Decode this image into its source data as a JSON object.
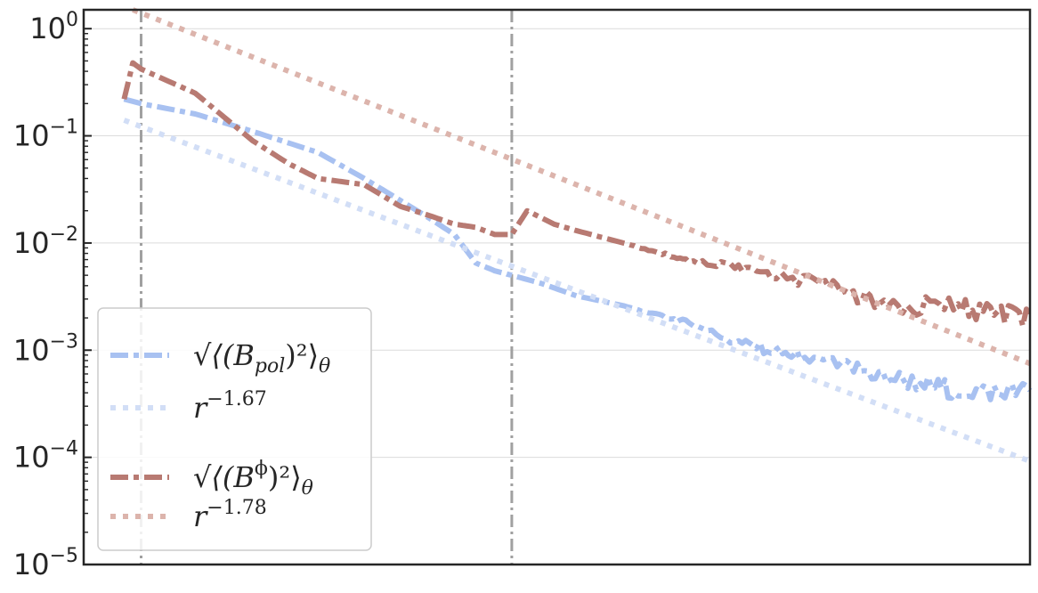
{
  "chart_data": {
    "type": "line",
    "title": "",
    "xlabel": "",
    "ylabel": "",
    "xscale": "log",
    "yscale": "log",
    "x_ticks_labeled": false,
    "xlim": [
      0.007,
      2.5
    ],
    "ylim": [
      1e-05,
      1.5
    ],
    "y_ticks": [
      {
        "value": 1,
        "base": "10",
        "exp": "0"
      },
      {
        "value": 0.1,
        "base": "10",
        "exp": "−1"
      },
      {
        "value": 0.01,
        "base": "10",
        "exp": "−2"
      },
      {
        "value": 0.001,
        "base": "10",
        "exp": "−3"
      },
      {
        "value": 0.0001,
        "base": "10",
        "exp": "−4"
      },
      {
        "value": 1e-05,
        "base": "10",
        "exp": "−5"
      }
    ],
    "vertical_lines": [
      {
        "x": 0.01,
        "style": "dashdot",
        "color": "#a0a0a0"
      },
      {
        "x": 0.1,
        "style": "dashdot",
        "color": "#a0a0a0"
      }
    ],
    "grid": {
      "horizontal": true,
      "vertical": false
    },
    "legend_position": "lower-left",
    "series": [
      {
        "name": "B_pol",
        "legend": {
          "prefix": "√⟨(B",
          "sub": "pol",
          "sup": "",
          "suffix": ")²⟩",
          "tail": "θ"
        },
        "color": "#a8c1f1",
        "style": "dashdot",
        "x": [
          0.009,
          0.01,
          0.014,
          0.02,
          0.03,
          0.04,
          0.05,
          0.06,
          0.07,
          0.08,
          0.09,
          0.1,
          0.12,
          0.15,
          0.2,
          0.25,
          0.3,
          0.4,
          0.5,
          0.6,
          0.8,
          1.0,
          1.3,
          1.6,
          2.0,
          2.5
        ],
        "values": [
          0.22,
          0.2,
          0.16,
          0.11,
          0.07,
          0.04,
          0.025,
          0.017,
          0.012,
          0.0065,
          0.0055,
          0.005,
          0.0042,
          0.0032,
          0.0026,
          0.0021,
          0.0018,
          0.0012,
          0.001,
          0.00085,
          0.0007,
          0.00058,
          0.00048,
          0.00042,
          0.0004,
          0.00042
        ]
      },
      {
        "name": "B_pol_fit",
        "legend": {
          "prefix": "r",
          "sub": "",
          "sup": "−1.67",
          "suffix": "",
          "tail": ""
        },
        "color": "#d2def6",
        "style": "dotted",
        "x": [
          0.009,
          2.5
        ],
        "values": [
          0.14,
          9.2e-05
        ]
      },
      {
        "name": "B_phi",
        "legend": {
          "prefix": "√⟨(B",
          "sub": "",
          "sup": "ϕ",
          "suffix": ")²⟩",
          "tail": "θ"
        },
        "color": "#b87a72",
        "style": "dashdot",
        "x": [
          0.009,
          0.0095,
          0.01,
          0.014,
          0.02,
          0.025,
          0.03,
          0.04,
          0.05,
          0.06,
          0.07,
          0.08,
          0.09,
          0.1,
          0.11,
          0.13,
          0.15,
          0.2,
          0.25,
          0.3,
          0.4,
          0.5,
          0.7,
          0.9,
          1.2,
          1.6,
          2.0,
          2.5
        ],
        "values": [
          0.22,
          0.48,
          0.42,
          0.25,
          0.09,
          0.055,
          0.04,
          0.035,
          0.022,
          0.018,
          0.015,
          0.014,
          0.012,
          0.012,
          0.02,
          0.015,
          0.013,
          0.01,
          0.008,
          0.007,
          0.006,
          0.005,
          0.0042,
          0.003,
          0.0026,
          0.0025,
          0.0022,
          0.002
        ]
      },
      {
        "name": "B_phi_fit",
        "legend": {
          "prefix": "r",
          "sub": "",
          "sup": "−1.78",
          "suffix": "",
          "tail": ""
        },
        "color": "#dcb4ac",
        "style": "dotted",
        "x": [
          0.0095,
          2.5
        ],
        "values": [
          1.5,
          0.00075
        ]
      }
    ]
  }
}
